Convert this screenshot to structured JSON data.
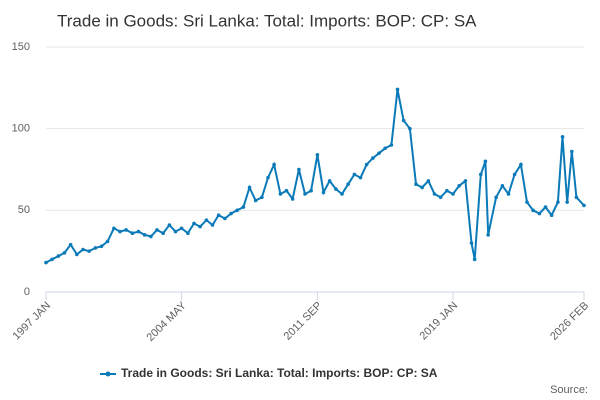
{
  "chart_data": {
    "type": "line",
    "title": "Trade in Goods: Sri Lanka: Total: Imports: BOP: CP: SA",
    "source": "Source:",
    "x": [
      1997.0,
      1997.33,
      1997.67,
      1998.0,
      1998.33,
      1998.67,
      1999.0,
      1999.33,
      1999.67,
      2000.0,
      2000.33,
      2000.67,
      2001.0,
      2001.33,
      2001.67,
      2002.0,
      2002.33,
      2002.67,
      2003.0,
      2003.33,
      2003.67,
      2004.0,
      2004.33,
      2004.67,
      2005.0,
      2005.33,
      2005.67,
      2006.0,
      2006.33,
      2006.67,
      2007.0,
      2007.33,
      2007.67,
      2008.0,
      2008.33,
      2008.67,
      2009.0,
      2009.33,
      2009.67,
      2010.0,
      2010.33,
      2010.67,
      2011.0,
      2011.33,
      2011.67,
      2012.0,
      2012.33,
      2012.67,
      2013.0,
      2013.33,
      2013.67,
      2014.0,
      2014.33,
      2014.67,
      2015.0,
      2015.33,
      2015.67,
      2016.0,
      2016.33,
      2016.67,
      2017.0,
      2017.33,
      2017.67,
      2018.0,
      2018.33,
      2018.67,
      2019.0,
      2019.33,
      2019.67,
      2020.0,
      2020.17,
      2020.5,
      2020.75,
      2020.9,
      2021.33,
      2021.67,
      2022.0,
      2022.33,
      2022.67,
      2023.0,
      2023.33,
      2023.67,
      2024.0,
      2024.33,
      2024.67,
      2024.92,
      2025.17,
      2025.42,
      2025.67,
      2026.08
    ],
    "series": [
      {
        "name": "Trade in Goods: Sri Lanka: Total: Imports: BOP: CP: SA",
        "color": "#0b7ab8",
        "values": [
          18,
          20,
          22,
          24,
          29,
          23,
          26,
          25,
          27,
          28,
          31,
          39,
          37,
          38,
          36,
          37,
          35,
          34,
          38,
          36,
          41,
          37,
          39,
          36,
          42,
          40,
          44,
          41,
          47,
          45,
          48,
          50,
          52,
          64,
          56,
          58,
          70,
          78,
          60,
          62,
          57,
          75,
          60,
          62,
          84,
          61,
          68,
          63,
          60,
          66,
          72,
          70,
          78,
          82,
          85,
          88,
          90,
          124,
          105,
          100,
          66,
          64,
          68,
          60,
          58,
          62,
          60,
          65,
          68,
          30,
          20,
          72,
          80,
          35,
          58,
          65,
          60,
          72,
          78,
          55,
          50,
          48,
          52,
          47,
          55,
          95,
          55,
          86,
          58,
          53
        ]
      }
    ],
    "xlim": [
      1997,
      2026.08
    ],
    "xticks": [
      {
        "value": 1997,
        "label": "1997 JAN"
      },
      {
        "value": 2004.33,
        "label": "2004 MAY"
      },
      {
        "value": 2011.67,
        "label": "2011 SEP"
      },
      {
        "value": 2019,
        "label": "2019 JAN"
      },
      {
        "value": 2026.08,
        "label": "2026 FEB"
      }
    ],
    "ylim": [
      0,
      150
    ],
    "yticks": [
      0,
      50,
      100,
      150
    ],
    "grid": true
  }
}
